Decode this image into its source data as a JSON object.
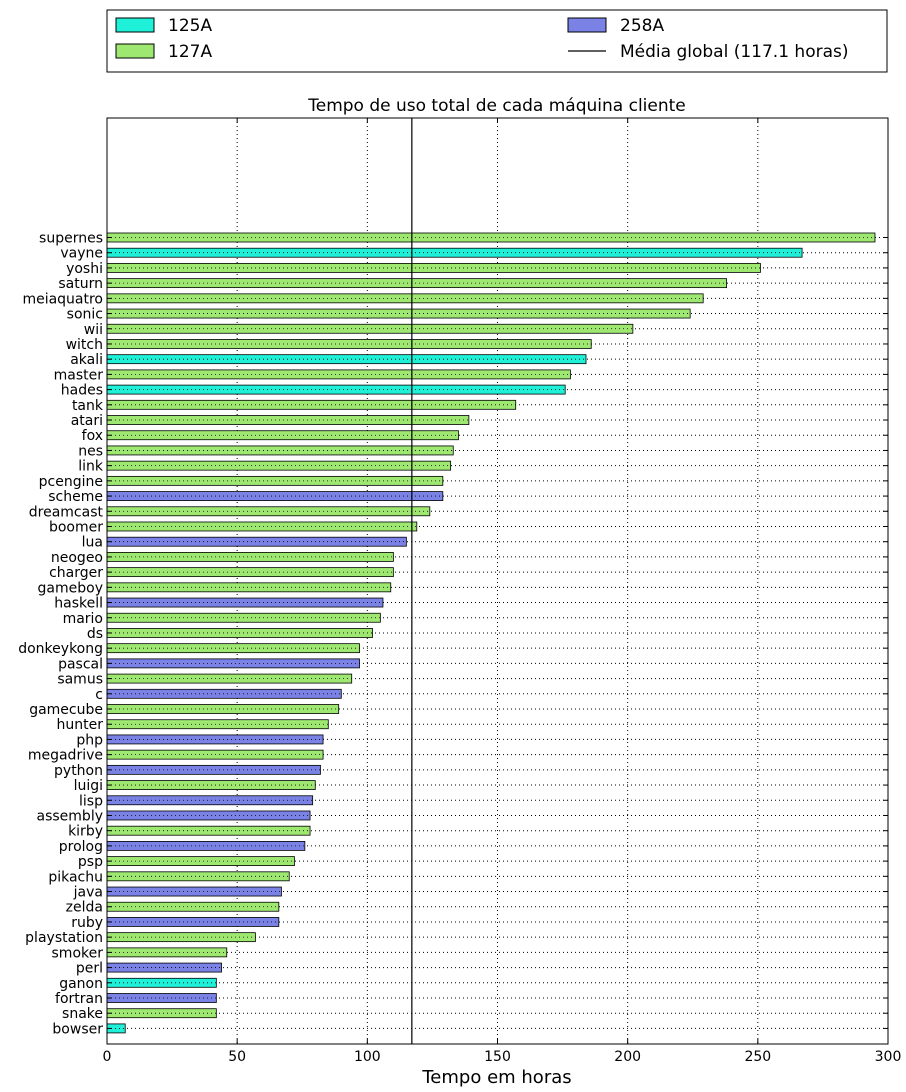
{
  "chart_data": {
    "type": "bar",
    "orientation": "horizontal",
    "title": "Tempo de uso total de cada máquina cliente",
    "xlabel": "Tempo em horas",
    "ylabel": "",
    "xlim": [
      0,
      300
    ],
    "xticks": [
      "0",
      "50",
      "100",
      "150",
      "200",
      "250",
      "300"
    ],
    "grid": true,
    "legend_position": "top",
    "colors": {
      "125A": "#1ff0d8",
      "127A": "#9ee872",
      "258A": "#7a82e6"
    },
    "legend": [
      {
        "label": "125A",
        "kind": "patch",
        "group": "125A"
      },
      {
        "label": "127A",
        "kind": "patch",
        "group": "127A"
      },
      {
        "label": "258A",
        "kind": "patch",
        "group": "258A"
      },
      {
        "label": "Média global (117.1 horas)",
        "kind": "line"
      }
    ],
    "mean_line": {
      "value": 117.1
    },
    "bars": [
      {
        "name": "supernes",
        "value": 295,
        "group": "127A"
      },
      {
        "name": "vayne",
        "value": 267,
        "group": "125A"
      },
      {
        "name": "yoshi",
        "value": 251,
        "group": "127A"
      },
      {
        "name": "saturn",
        "value": 238,
        "group": "127A"
      },
      {
        "name": "meiaquatro",
        "value": 229,
        "group": "127A"
      },
      {
        "name": "sonic",
        "value": 224,
        "group": "127A"
      },
      {
        "name": "wii",
        "value": 202,
        "group": "127A"
      },
      {
        "name": "witch",
        "value": 186,
        "group": "127A"
      },
      {
        "name": "akali",
        "value": 184,
        "group": "125A"
      },
      {
        "name": "master",
        "value": 178,
        "group": "127A"
      },
      {
        "name": "hades",
        "value": 176,
        "group": "125A"
      },
      {
        "name": "tank",
        "value": 157,
        "group": "127A"
      },
      {
        "name": "atari",
        "value": 139,
        "group": "127A"
      },
      {
        "name": "fox",
        "value": 135,
        "group": "127A"
      },
      {
        "name": "nes",
        "value": 133,
        "group": "127A"
      },
      {
        "name": "link",
        "value": 132,
        "group": "127A"
      },
      {
        "name": "pcengine",
        "value": 129,
        "group": "127A"
      },
      {
        "name": "scheme",
        "value": 129,
        "group": "258A"
      },
      {
        "name": "dreamcast",
        "value": 124,
        "group": "127A"
      },
      {
        "name": "boomer",
        "value": 119,
        "group": "127A"
      },
      {
        "name": "lua",
        "value": 115,
        "group": "258A"
      },
      {
        "name": "neogeo",
        "value": 110,
        "group": "127A"
      },
      {
        "name": "charger",
        "value": 110,
        "group": "127A"
      },
      {
        "name": "gameboy",
        "value": 109,
        "group": "127A"
      },
      {
        "name": "haskell",
        "value": 106,
        "group": "258A"
      },
      {
        "name": "mario",
        "value": 105,
        "group": "127A"
      },
      {
        "name": "ds",
        "value": 102,
        "group": "127A"
      },
      {
        "name": "donkeykong",
        "value": 97,
        "group": "127A"
      },
      {
        "name": "pascal",
        "value": 97,
        "group": "258A"
      },
      {
        "name": "samus",
        "value": 94,
        "group": "127A"
      },
      {
        "name": "c",
        "value": 90,
        "group": "258A"
      },
      {
        "name": "gamecube",
        "value": 89,
        "group": "127A"
      },
      {
        "name": "hunter",
        "value": 85,
        "group": "127A"
      },
      {
        "name": "php",
        "value": 83,
        "group": "258A"
      },
      {
        "name": "megadrive",
        "value": 83,
        "group": "127A"
      },
      {
        "name": "python",
        "value": 82,
        "group": "258A"
      },
      {
        "name": "luigi",
        "value": 80,
        "group": "127A"
      },
      {
        "name": "lisp",
        "value": 79,
        "group": "258A"
      },
      {
        "name": "assembly",
        "value": 78,
        "group": "258A"
      },
      {
        "name": "kirby",
        "value": 78,
        "group": "127A"
      },
      {
        "name": "prolog",
        "value": 76,
        "group": "258A"
      },
      {
        "name": "psp",
        "value": 72,
        "group": "127A"
      },
      {
        "name": "pikachu",
        "value": 70,
        "group": "127A"
      },
      {
        "name": "java",
        "value": 67,
        "group": "258A"
      },
      {
        "name": "zelda",
        "value": 66,
        "group": "127A"
      },
      {
        "name": "ruby",
        "value": 66,
        "group": "258A"
      },
      {
        "name": "playstation",
        "value": 57,
        "group": "127A"
      },
      {
        "name": "smoker",
        "value": 46,
        "group": "127A"
      },
      {
        "name": "perl",
        "value": 44,
        "group": "258A"
      },
      {
        "name": "ganon",
        "value": 42,
        "group": "125A"
      },
      {
        "name": "fortran",
        "value": 42,
        "group": "258A"
      },
      {
        "name": "snake",
        "value": 42,
        "group": "127A"
      },
      {
        "name": "bowser",
        "value": 7,
        "group": "125A"
      }
    ]
  }
}
